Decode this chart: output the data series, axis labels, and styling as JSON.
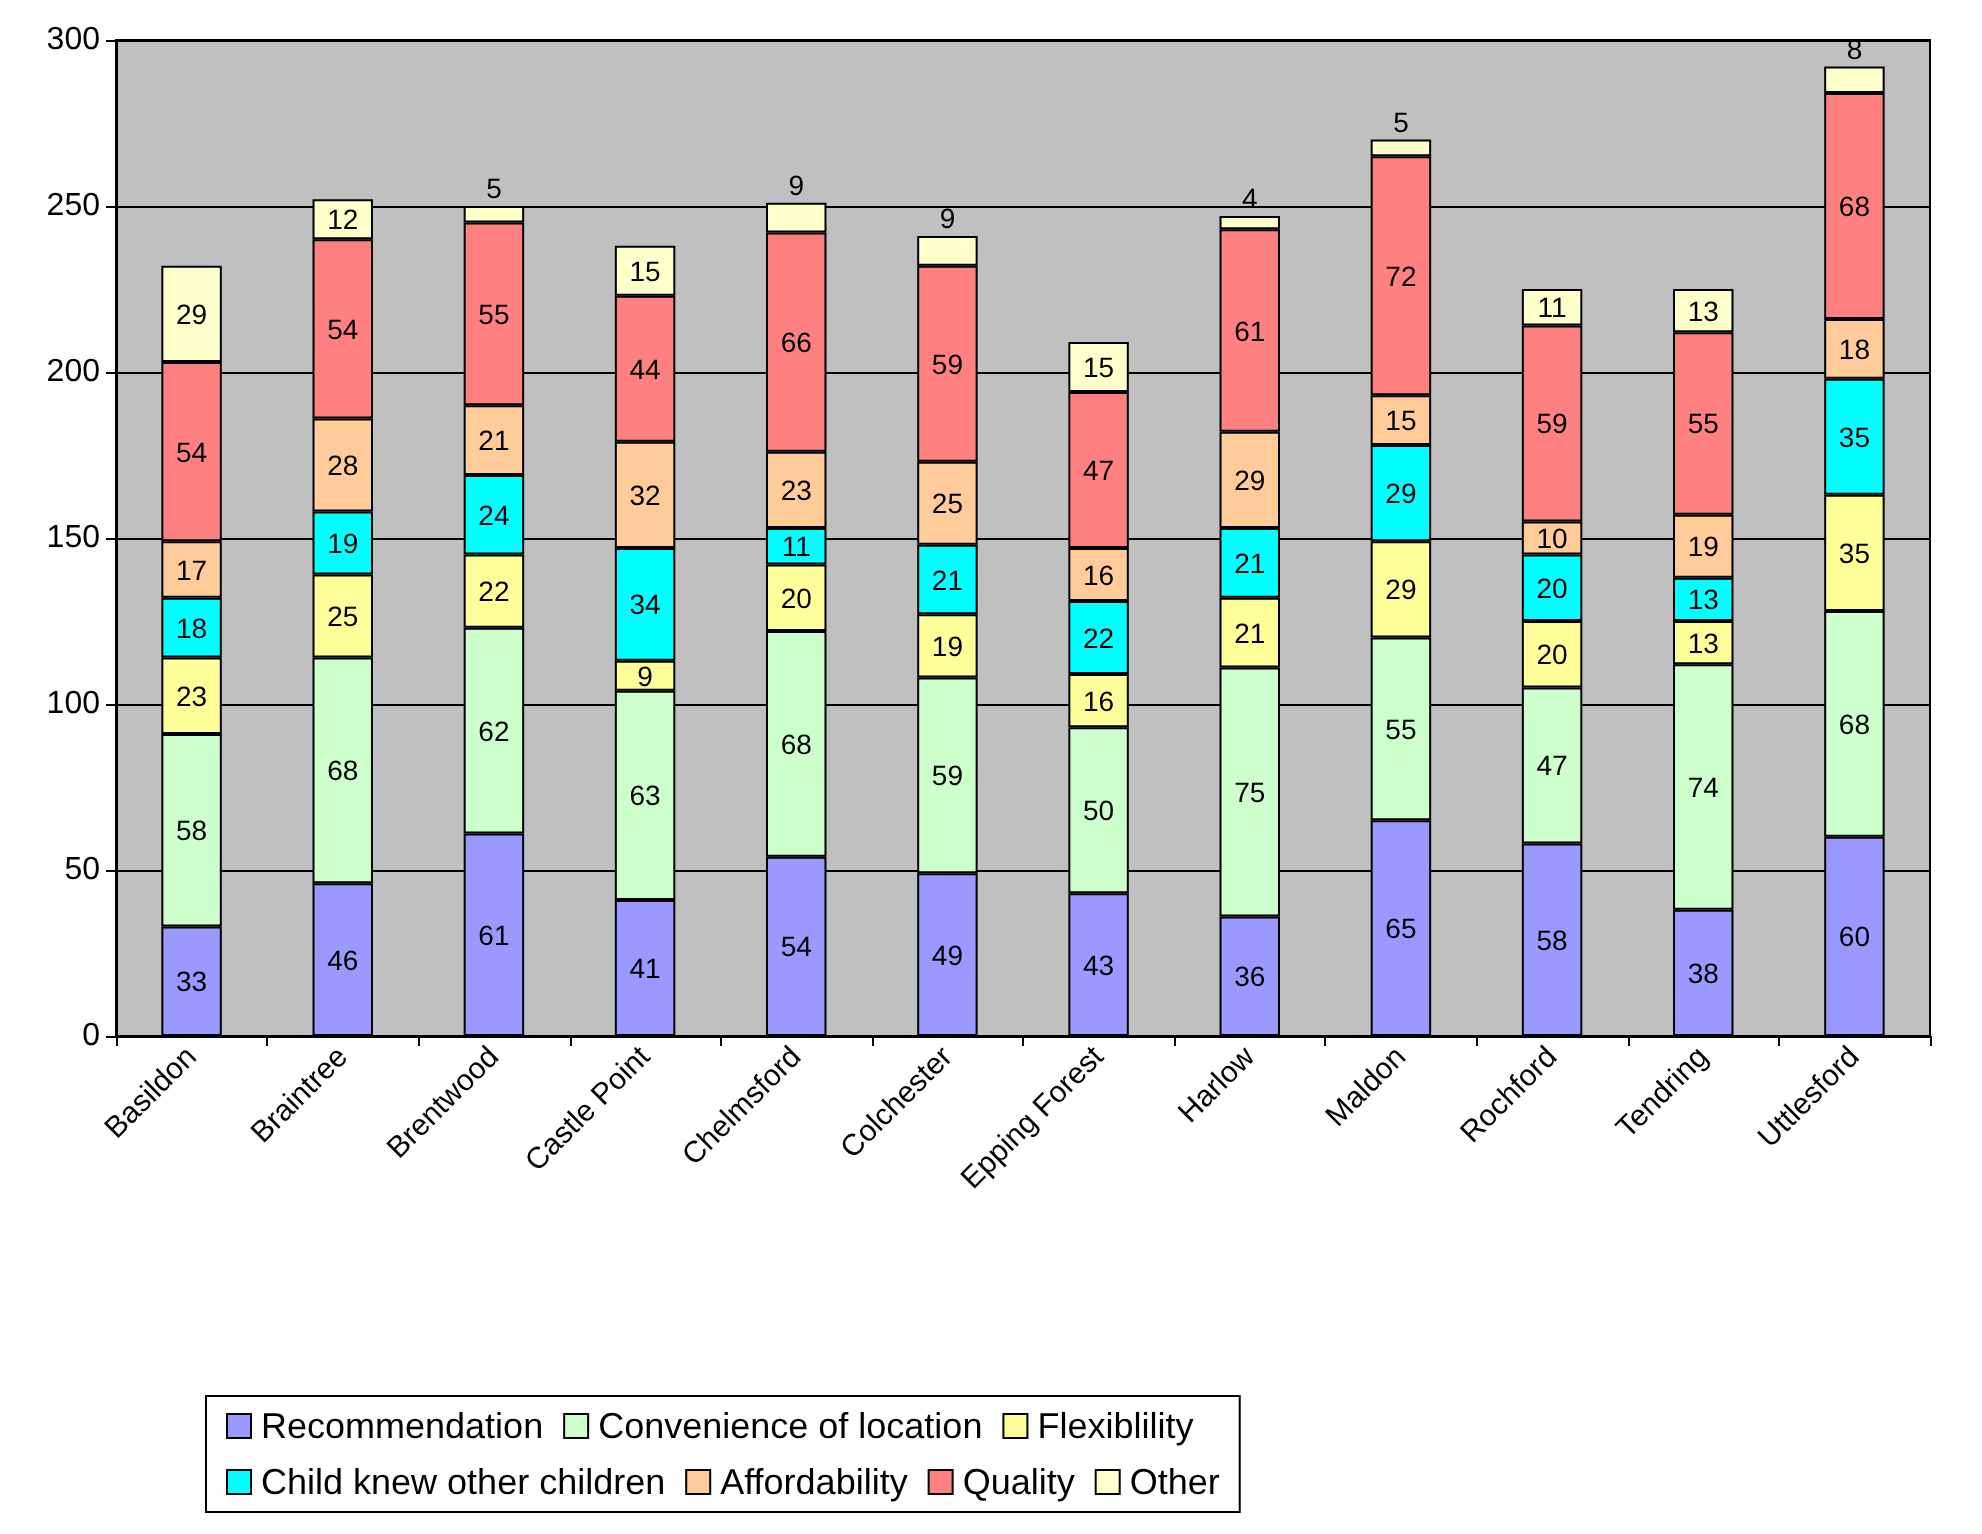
{
  "chart_data": {
    "type": "bar",
    "stacked": true,
    "data_labels": true,
    "grid": "y",
    "legend": "bottom",
    "categories": [
      "Basildon",
      "Braintree",
      "Brentwood",
      "Castle Point",
      "Chelmsford",
      "Colchester",
      "Epping Forest",
      "Harlow",
      "Maldon",
      "Rochford",
      "Tendring",
      "Uttlesford"
    ],
    "ylim": [
      0,
      300
    ],
    "yticks": [
      0,
      50,
      100,
      150,
      200,
      250,
      300
    ],
    "series": [
      {
        "name": "Recommendation",
        "color": "#9999ff",
        "values": [
          33,
          46,
          61,
          41,
          54,
          49,
          43,
          36,
          65,
          58,
          38,
          60
        ]
      },
      {
        "name": "Convenience of location",
        "color": "#ccffcc",
        "values": [
          58,
          68,
          62,
          63,
          68,
          59,
          50,
          75,
          55,
          47,
          74,
          68
        ]
      },
      {
        "name": "Flexiblility",
        "color": "#ffff99",
        "values": [
          23,
          25,
          22,
          9,
          20,
          19,
          16,
          21,
          29,
          20,
          13,
          35
        ]
      },
      {
        "name": "Child knew other children",
        "color": "#00ffff",
        "values": [
          18,
          19,
          24,
          34,
          11,
          21,
          22,
          21,
          29,
          20,
          13,
          35
        ]
      },
      {
        "name": "Affordability",
        "color": "#ffcc99",
        "values": [
          17,
          28,
          21,
          32,
          23,
          25,
          16,
          29,
          15,
          10,
          19,
          18
        ]
      },
      {
        "name": "Quality",
        "color": "#ff8080",
        "values": [
          54,
          54,
          55,
          44,
          66,
          59,
          47,
          61,
          72,
          59,
          55,
          68
        ]
      },
      {
        "name": "Other",
        "color": "#ffffcc",
        "values": [
          29,
          12,
          5,
          15,
          9,
          9,
          15,
          4,
          5,
          11,
          13,
          8
        ]
      }
    ]
  }
}
